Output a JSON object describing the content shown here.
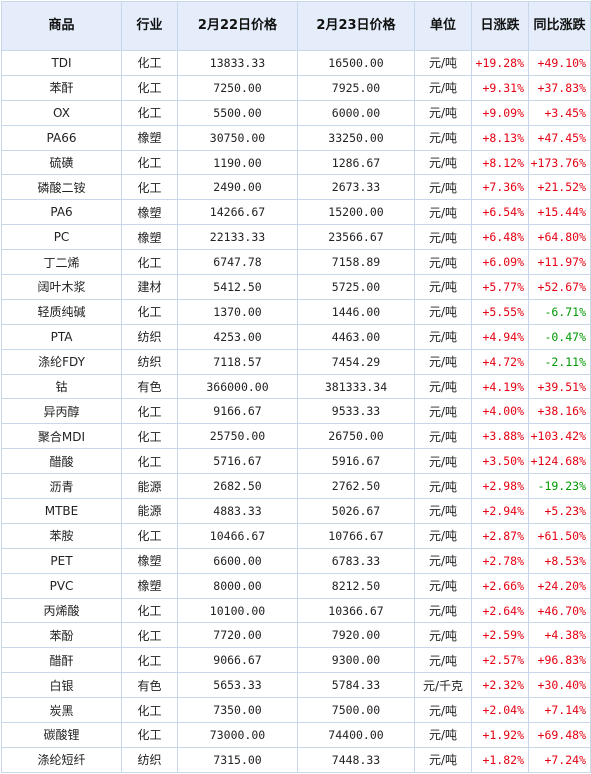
{
  "headers": [
    "商品",
    "行业",
    "2月22日价格",
    "2月23日价格",
    "单位",
    "日涨跌",
    "同比涨跌"
  ],
  "rows": [
    {
      "name": "TDI",
      "sector": "化工",
      "p1": "13833.33",
      "p2": "16500.00",
      "unit": "元/吨",
      "daily": "+19.28%",
      "yoy": "+49.10%",
      "yoy_dir": "up"
    },
    {
      "name": "苯酐",
      "sector": "化工",
      "p1": "7250.00",
      "p2": "7925.00",
      "unit": "元/吨",
      "daily": "+9.31%",
      "yoy": "+37.83%",
      "yoy_dir": "up"
    },
    {
      "name": "OX",
      "sector": "化工",
      "p1": "5500.00",
      "p2": "6000.00",
      "unit": "元/吨",
      "daily": "+9.09%",
      "yoy": "+3.45%",
      "yoy_dir": "up"
    },
    {
      "name": "PA66",
      "sector": "橡塑",
      "p1": "30750.00",
      "p2": "33250.00",
      "unit": "元/吨",
      "daily": "+8.13%",
      "yoy": "+47.45%",
      "yoy_dir": "up"
    },
    {
      "name": "硫磺",
      "sector": "化工",
      "p1": "1190.00",
      "p2": "1286.67",
      "unit": "元/吨",
      "daily": "+8.12%",
      "yoy": "+173.76%",
      "yoy_dir": "up"
    },
    {
      "name": "磷酸二铵",
      "sector": "化工",
      "p1": "2490.00",
      "p2": "2673.33",
      "unit": "元/吨",
      "daily": "+7.36%",
      "yoy": "+21.52%",
      "yoy_dir": "up"
    },
    {
      "name": "PA6",
      "sector": "橡塑",
      "p1": "14266.67",
      "p2": "15200.00",
      "unit": "元/吨",
      "daily": "+6.54%",
      "yoy": "+15.44%",
      "yoy_dir": "up"
    },
    {
      "name": "PC",
      "sector": "橡塑",
      "p1": "22133.33",
      "p2": "23566.67",
      "unit": "元/吨",
      "daily": "+6.48%",
      "yoy": "+64.80%",
      "yoy_dir": "up"
    },
    {
      "name": "丁二烯",
      "sector": "化工",
      "p1": "6747.78",
      "p2": "7158.89",
      "unit": "元/吨",
      "daily": "+6.09%",
      "yoy": "+11.97%",
      "yoy_dir": "up"
    },
    {
      "name": "阔叶木浆",
      "sector": "建材",
      "p1": "5412.50",
      "p2": "5725.00",
      "unit": "元/吨",
      "daily": "+5.77%",
      "yoy": "+52.67%",
      "yoy_dir": "up"
    },
    {
      "name": "轻质纯碱",
      "sector": "化工",
      "p1": "1370.00",
      "p2": "1446.00",
      "unit": "元/吨",
      "daily": "+5.55%",
      "yoy": "-6.71%",
      "yoy_dir": "down"
    },
    {
      "name": "PTA",
      "sector": "纺织",
      "p1": "4253.00",
      "p2": "4463.00",
      "unit": "元/吨",
      "daily": "+4.94%",
      "yoy": "-0.47%",
      "yoy_dir": "down"
    },
    {
      "name": "涤纶FDY",
      "sector": "纺织",
      "p1": "7118.57",
      "p2": "7454.29",
      "unit": "元/吨",
      "daily": "+4.72%",
      "yoy": "-2.11%",
      "yoy_dir": "down"
    },
    {
      "name": "钴",
      "sector": "有色",
      "p1": "366000.00",
      "p2": "381333.34",
      "unit": "元/吨",
      "daily": "+4.19%",
      "yoy": "+39.51%",
      "yoy_dir": "up"
    },
    {
      "name": "异丙醇",
      "sector": "化工",
      "p1": "9166.67",
      "p2": "9533.33",
      "unit": "元/吨",
      "daily": "+4.00%",
      "yoy": "+38.16%",
      "yoy_dir": "up"
    },
    {
      "name": "聚合MDI",
      "sector": "化工",
      "p1": "25750.00",
      "p2": "26750.00",
      "unit": "元/吨",
      "daily": "+3.88%",
      "yoy": "+103.42%",
      "yoy_dir": "up"
    },
    {
      "name": "醋酸",
      "sector": "化工",
      "p1": "5716.67",
      "p2": "5916.67",
      "unit": "元/吨",
      "daily": "+3.50%",
      "yoy": "+124.68%",
      "yoy_dir": "up"
    },
    {
      "name": "沥青",
      "sector": "能源",
      "p1": "2682.50",
      "p2": "2762.50",
      "unit": "元/吨",
      "daily": "+2.98%",
      "yoy": "-19.23%",
      "yoy_dir": "down"
    },
    {
      "name": "MTBE",
      "sector": "能源",
      "p1": "4883.33",
      "p2": "5026.67",
      "unit": "元/吨",
      "daily": "+2.94%",
      "yoy": "+5.23%",
      "yoy_dir": "up"
    },
    {
      "name": "苯胺",
      "sector": "化工",
      "p1": "10466.67",
      "p2": "10766.67",
      "unit": "元/吨",
      "daily": "+2.87%",
      "yoy": "+61.50%",
      "yoy_dir": "up"
    },
    {
      "name": "PET",
      "sector": "橡塑",
      "p1": "6600.00",
      "p2": "6783.33",
      "unit": "元/吨",
      "daily": "+2.78%",
      "yoy": "+8.53%",
      "yoy_dir": "up"
    },
    {
      "name": "PVC",
      "sector": "橡塑",
      "p1": "8000.00",
      "p2": "8212.50",
      "unit": "元/吨",
      "daily": "+2.66%",
      "yoy": "+24.20%",
      "yoy_dir": "up"
    },
    {
      "name": "丙烯酸",
      "sector": "化工",
      "p1": "10100.00",
      "p2": "10366.67",
      "unit": "元/吨",
      "daily": "+2.64%",
      "yoy": "+46.70%",
      "yoy_dir": "up"
    },
    {
      "name": "苯酚",
      "sector": "化工",
      "p1": "7720.00",
      "p2": "7920.00",
      "unit": "元/吨",
      "daily": "+2.59%",
      "yoy": "+4.38%",
      "yoy_dir": "up"
    },
    {
      "name": "醋酐",
      "sector": "化工",
      "p1": "9066.67",
      "p2": "9300.00",
      "unit": "元/吨",
      "daily": "+2.57%",
      "yoy": "+96.83%",
      "yoy_dir": "up"
    },
    {
      "name": "白银",
      "sector": "有色",
      "p1": "5653.33",
      "p2": "5784.33",
      "unit": "元/千克",
      "daily": "+2.32%",
      "yoy": "+30.40%",
      "yoy_dir": "up"
    },
    {
      "name": "炭黑",
      "sector": "化工",
      "p1": "7350.00",
      "p2": "7500.00",
      "unit": "元/吨",
      "daily": "+2.04%",
      "yoy": "+7.14%",
      "yoy_dir": "up"
    },
    {
      "name": "碳酸锂",
      "sector": "化工",
      "p1": "73000.00",
      "p2": "74400.00",
      "unit": "元/吨",
      "daily": "+1.92%",
      "yoy": "+69.48%",
      "yoy_dir": "up"
    },
    {
      "name": "涤纶短纤",
      "sector": "纺织",
      "p1": "7315.00",
      "p2": "7448.33",
      "unit": "元/吨",
      "daily": "+1.82%",
      "yoy": "+7.24%",
      "yoy_dir": "up"
    }
  ],
  "colors": {
    "up": "#e60012",
    "down": "#009900",
    "header_bg": "#e4edf9",
    "border": "#c9d7ea"
  }
}
